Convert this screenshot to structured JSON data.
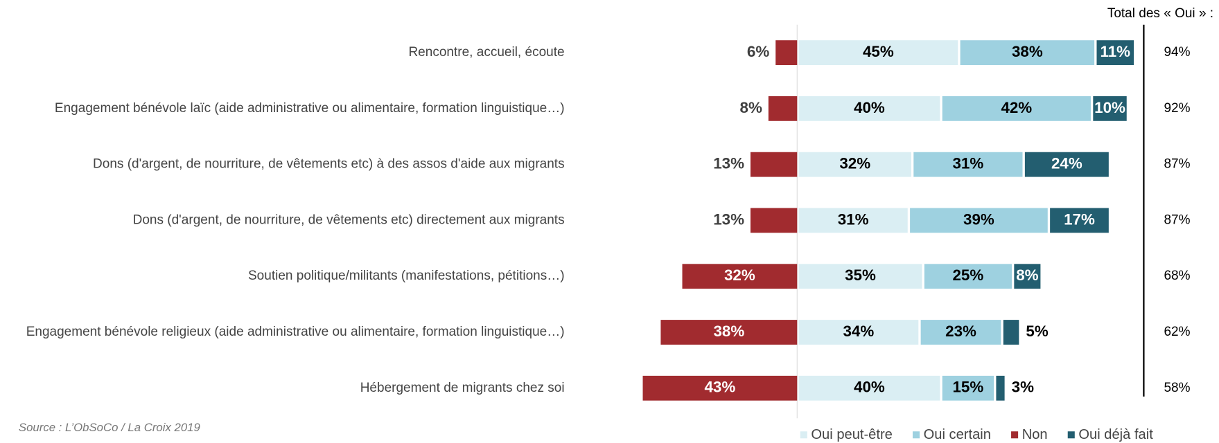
{
  "chart_data": {
    "type": "diverging-bar",
    "categories": [
      "Rencontre, accueil, écoute",
      "Engagement bénévole laïc (aide administrative ou alimentaire, formation linguistique…)",
      "Dons (d'argent, de nourriture, de vêtements etc) à des assos d'aide aux migrants ",
      "Dons (d'argent, de nourriture, de vêtements etc) directement aux migrants",
      "Soutien politique/militants (manifestations, pétitions…)",
      "Engagement bénévole religieux (aide administrative ou alimentaire, formation linguistique…)",
      "Hébergement de migrants chez soi"
    ],
    "series": [
      {
        "name": "Oui peut-être",
        "color": "#daeef3",
        "values": [
          45,
          40,
          32,
          31,
          35,
          34,
          40
        ],
        "value_labels": [
          "45%",
          "40%",
          "32%",
          "31%",
          "35%",
          "34%",
          "40%"
        ]
      },
      {
        "name": "Oui certain",
        "color": "#9ed1e0",
        "values": [
          38,
          42,
          31,
          39,
          25,
          23,
          15
        ],
        "value_labels": [
          "38%",
          "42%",
          "31%",
          "39%",
          "25%",
          "23%",
          "15%"
        ]
      },
      {
        "name": "Non",
        "color": "#a12b2f",
        "values": [
          6,
          8,
          13,
          13,
          32,
          38,
          43
        ],
        "value_labels": [
          "6%",
          "8%",
          "13%",
          "13%",
          "32%",
          "38%",
          "43%"
        ]
      },
      {
        "name": "Oui déjà fait",
        "color": "#235e70",
        "values": [
          11,
          10,
          24,
          17,
          8,
          5,
          3
        ],
        "value_labels": [
          "11%",
          "10%",
          "24%",
          "17%",
          "8%",
          "5%",
          "3%"
        ]
      }
    ],
    "totals": {
      "title": "Total des « Oui » :",
      "values": [
        94,
        92,
        87,
        87,
        68,
        62,
        58
      ],
      "value_labels": [
        "94%",
        "92%",
        "87%",
        "87%",
        "68%",
        "62%",
        "58%"
      ]
    },
    "source": "Source : L’ObSoCo / La Croix 2019"
  }
}
